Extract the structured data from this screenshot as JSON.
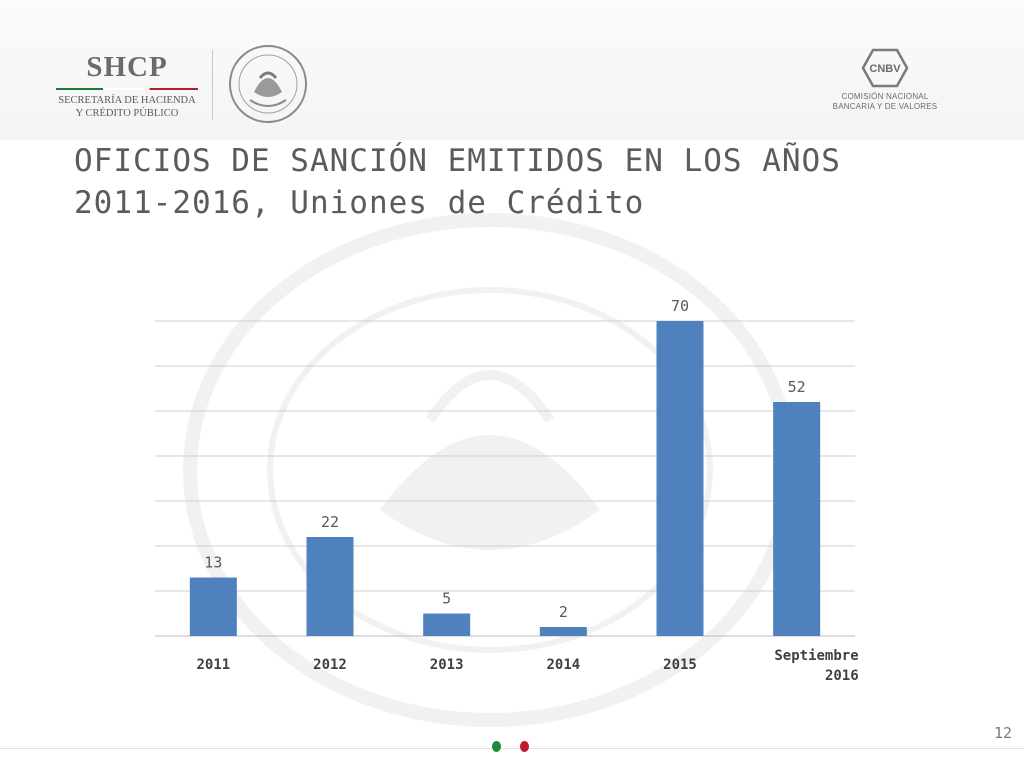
{
  "header": {
    "shcp_logo": {
      "title": "SHCP",
      "line1": "SECRETARÍA DE HACIENDA",
      "line2": "Y CRÉDITO PÚBLICO"
    },
    "seal_icon": "mexican-coat-of-arms-icon",
    "cnbv_logo": {
      "badge": "CNBV",
      "line1": "COMISIÓN NACIONAL",
      "line2": "BANCARIA Y DE VALORES"
    }
  },
  "title": {
    "line1": "OFICIOS DE SANCIÓN EMITIDOS EN LOS AÑOS",
    "line2": "2011-2016, Uniones de Crédito"
  },
  "chart_data": {
    "type": "bar",
    "title": "",
    "xlabel": "",
    "ylabel": "",
    "categories": [
      "2011",
      "2012",
      "2013",
      "2014",
      "2015",
      "Septiembre 2016"
    ],
    "values": [
      13,
      22,
      5,
      2,
      70,
      52
    ],
    "ylim": [
      0,
      70
    ],
    "grid": true,
    "data_labels": true,
    "bar_color": "#4f81bd"
  },
  "footer": {
    "page_number": "12",
    "colors": {
      "green": "#1f8a3c",
      "red": "#c2182b"
    }
  }
}
